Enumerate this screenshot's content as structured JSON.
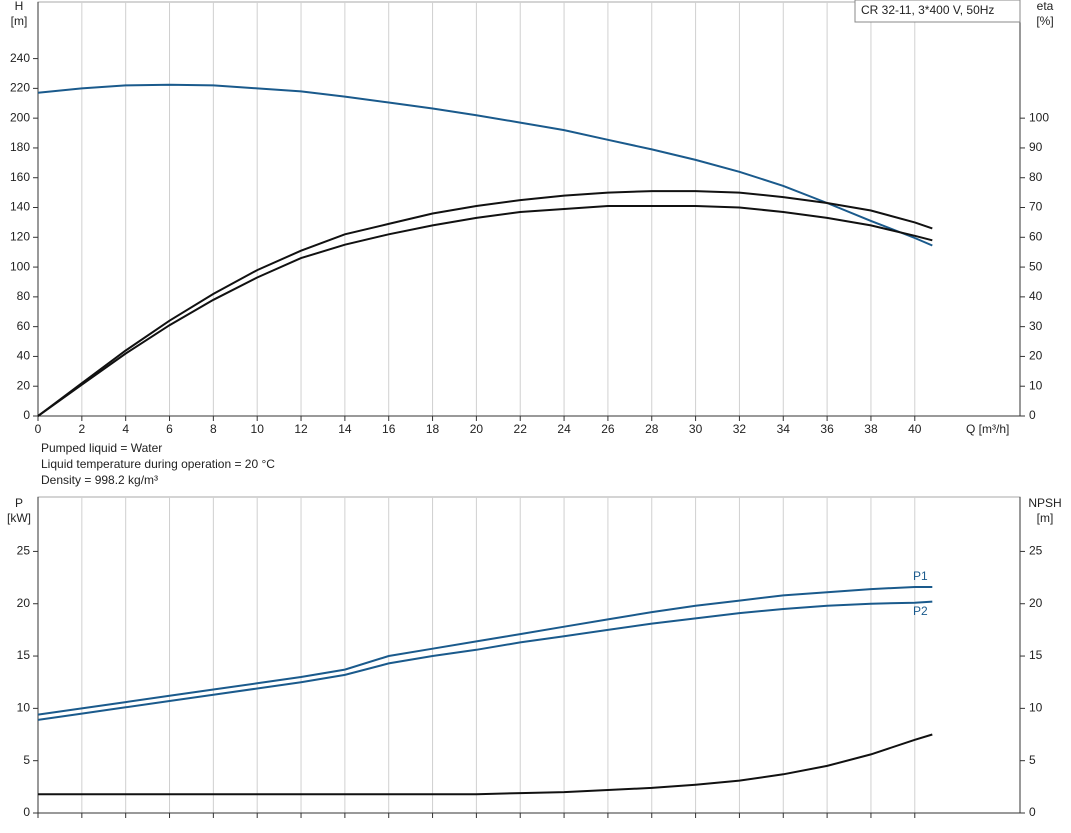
{
  "chart_data": [
    {
      "type": "line",
      "title": "CR 32-11, 3*400 V, 50Hz",
      "xlabel": "Q [m³/h]",
      "ylabel": [
        "H",
        "[m]"
      ],
      "y2label": [
        "eta",
        "[%]"
      ],
      "x": [
        0,
        2,
        4,
        6,
        8,
        10,
        12,
        14,
        16,
        18,
        20,
        22,
        24,
        26,
        28,
        30,
        32,
        34,
        36,
        38,
        40,
        40.8
      ],
      "xlim": [
        0,
        44.8
      ],
      "xticks": [
        0,
        2,
        4,
        6,
        8,
        10,
        12,
        14,
        16,
        18,
        20,
        22,
        24,
        26,
        28,
        30,
        32,
        34,
        36,
        38,
        40
      ],
      "ylim": [
        0,
        278
      ],
      "yticks": [
        0,
        20,
        40,
        60,
        80,
        100,
        120,
        140,
        160,
        180,
        200,
        220,
        240
      ],
      "y2lim": [
        0,
        139
      ],
      "y2ticks": [
        0,
        10,
        20,
        30,
        40,
        50,
        60,
        70,
        80,
        90,
        100
      ],
      "grid": true,
      "show_xtick_labels": true,
      "series": [
        {
          "color": "#1a5a8c",
          "values": [
            217,
            220,
            222,
            222.5,
            222,
            220,
            218,
            214.5,
            210.5,
            206.5,
            202,
            197,
            192,
            185.5,
            179,
            172,
            164,
            154.5,
            143,
            131,
            119.5,
            114.5
          ]
        },
        {
          "color": "#111111",
          "axis": "y2",
          "values": [
            0,
            11,
            22,
            32,
            41,
            49,
            55.5,
            61,
            64.5,
            68,
            70.5,
            72.5,
            74,
            75,
            75.5,
            75.5,
            75,
            73.5,
            71.5,
            69,
            65,
            63
          ]
        },
        {
          "color": "#111111",
          "axis": "y2",
          "values": [
            0,
            10.5,
            21,
            30.5,
            39,
            46.5,
            53,
            57.5,
            61,
            64,
            66.5,
            68.5,
            69.5,
            70.5,
            70.5,
            70.5,
            70,
            68.5,
            66.5,
            64,
            60.5,
            59
          ]
        }
      ]
    },
    {
      "type": "line",
      "ylabel": [
        "P",
        "[kW]"
      ],
      "y2label": [
        "NPSH",
        "[m]"
      ],
      "x": [
        0,
        2,
        4,
        6,
        8,
        10,
        12,
        14,
        16,
        18,
        20,
        22,
        24,
        26,
        28,
        30,
        32,
        34,
        36,
        38,
        40,
        40.8
      ],
      "xlim": [
        0,
        44.8
      ],
      "xticks": [
        0,
        2,
        4,
        6,
        8,
        10,
        12,
        14,
        16,
        18,
        20,
        22,
        24,
        26,
        28,
        30,
        32,
        34,
        36,
        38,
        40
      ],
      "ylim": [
        0,
        30.2
      ],
      "yticks": [
        0,
        5,
        10,
        15,
        20,
        25
      ],
      "y2lim": [
        0,
        30.2
      ],
      "y2ticks": [
        0,
        5,
        10,
        15,
        20,
        25
      ],
      "grid": true,
      "show_xtick_labels": false,
      "series": [
        {
          "name": "P1",
          "color": "#1a5a8c",
          "values": [
            9.4,
            10.0,
            10.6,
            11.2,
            11.8,
            12.4,
            13.0,
            13.7,
            15.0,
            15.7,
            16.4,
            17.1,
            17.8,
            18.5,
            19.2,
            19.8,
            20.3,
            20.8,
            21.1,
            21.4,
            21.6,
            21.6
          ]
        },
        {
          "name": "P2",
          "color": "#1a5a8c",
          "values": [
            8.9,
            9.5,
            10.1,
            10.7,
            11.3,
            11.9,
            12.5,
            13.2,
            14.3,
            15.0,
            15.6,
            16.3,
            16.9,
            17.5,
            18.1,
            18.6,
            19.1,
            19.5,
            19.8,
            20.0,
            20.1,
            20.2
          ]
        },
        {
          "color": "#111111",
          "axis": "y2",
          "values": [
            1.8,
            1.8,
            1.8,
            1.8,
            1.8,
            1.8,
            1.8,
            1.8,
            1.8,
            1.8,
            1.8,
            1.9,
            2.0,
            2.2,
            2.4,
            2.7,
            3.1,
            3.7,
            4.5,
            5.6,
            7.0,
            7.5
          ]
        }
      ]
    }
  ],
  "notes": [
    "Pumped liquid = Water",
    "Liquid temperature during operation = 20 °C",
    "Density = 998.2 kg/m³"
  ]
}
